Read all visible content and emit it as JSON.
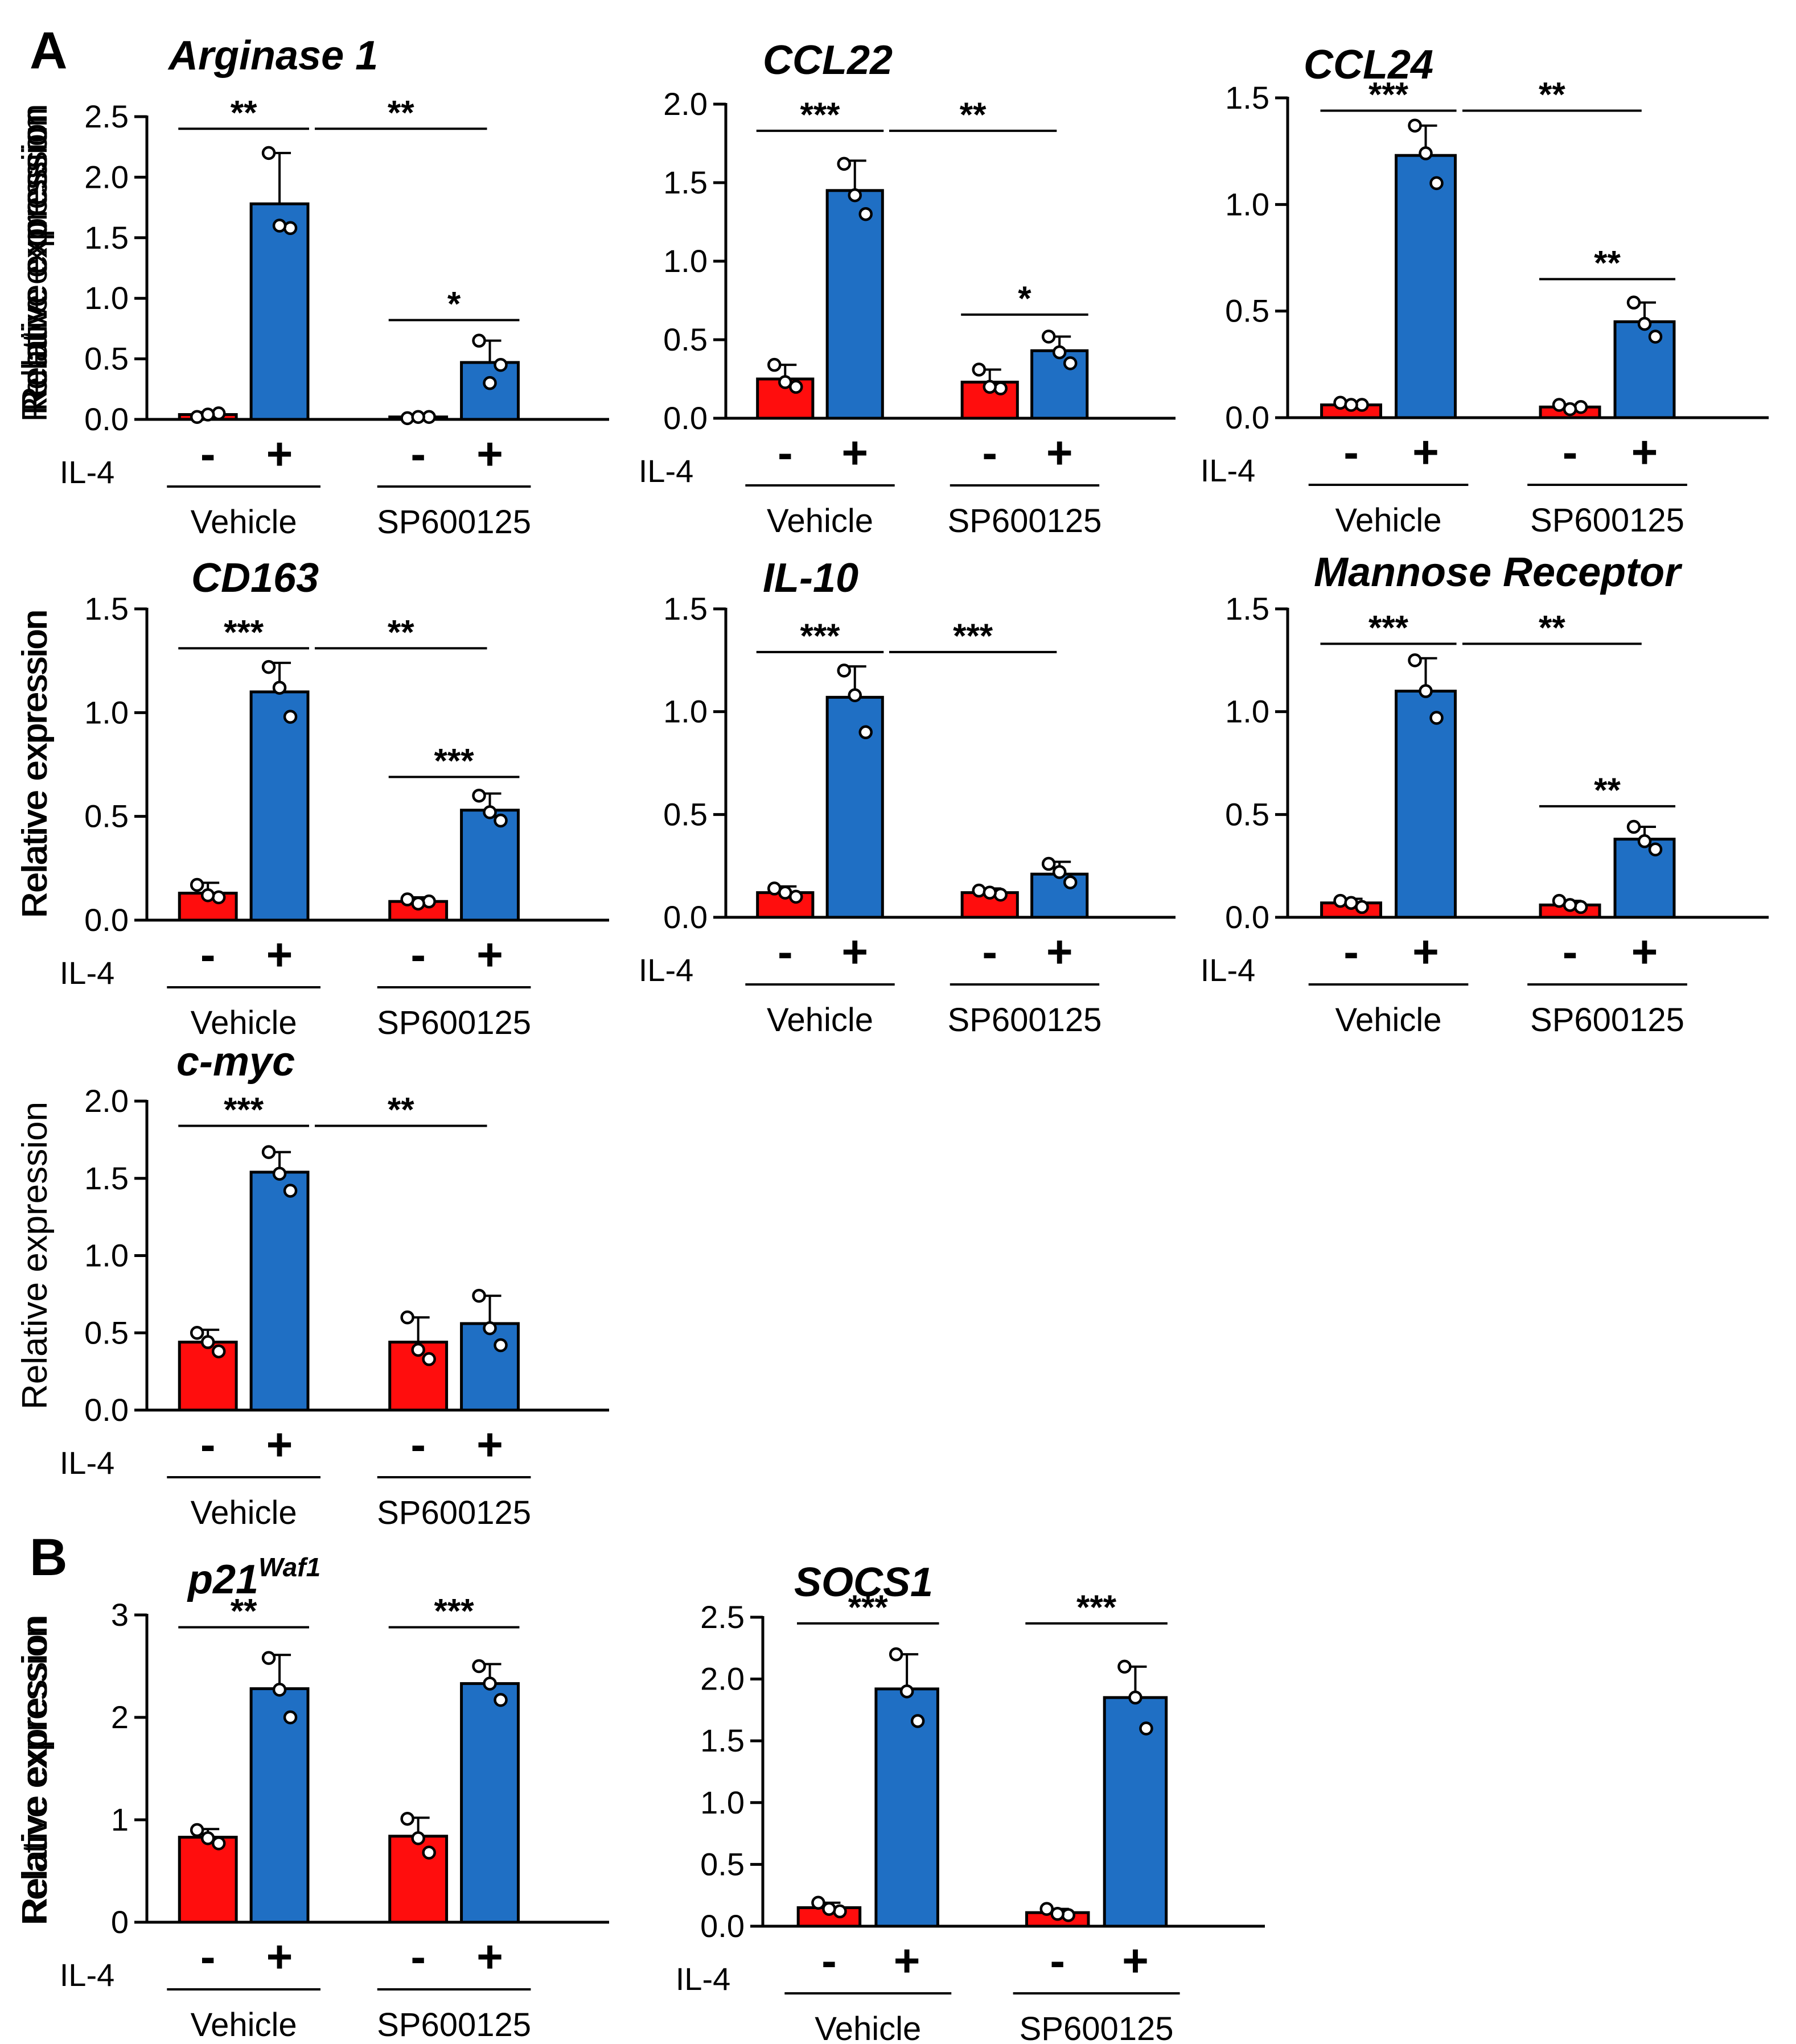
{
  "figure": {
    "ylabel": "Relative expression",
    "x_factor_label": "IL-4",
    "minus": "-",
    "plus": "+",
    "group_labels": [
      "Vehicle",
      "SP600125"
    ],
    "colors": {
      "no_il4": "#ff0d0d",
      "il4": "#1f6fc4"
    },
    "panel_letters": [
      "A",
      "B"
    ]
  },
  "chart_data": [
    {
      "type": "bar",
      "panel": "A",
      "title": "Arginase 1",
      "ylim": [
        0,
        2.5
      ],
      "yticks": [
        0.0,
        0.5,
        1.0,
        1.5,
        2.0,
        2.5
      ],
      "categories": [
        "Vehicle -",
        "Vehicle +",
        "SP600125 -",
        "SP600125 +"
      ],
      "values": [
        0.04,
        1.78,
        0.02,
        0.47
      ],
      "error": [
        0.02,
        0.42,
        0.01,
        0.18
      ],
      "points": [
        [
          0.02,
          0.05,
          0.04
        ],
        [
          2.2,
          1.58,
          1.6
        ],
        [
          0.01,
          0.02,
          0.02
        ],
        [
          0.65,
          0.45,
          0.3
        ]
      ],
      "significance": [
        {
          "from": 0,
          "to": 1,
          "label": "**",
          "y": 2.4
        },
        {
          "from": 1,
          "to": 3,
          "label": "**",
          "y": 2.4
        },
        {
          "from": 2,
          "to": 3,
          "label": "*",
          "y": 0.82
        }
      ]
    },
    {
      "type": "bar",
      "panel": "A",
      "title": "CCL22",
      "ylim": [
        0,
        2.0
      ],
      "yticks": [
        0.0,
        0.5,
        1.0,
        1.5,
        2.0
      ],
      "categories": [
        "Vehicle -",
        "Vehicle +",
        "SP600125 -",
        "SP600125 +"
      ],
      "values": [
        0.25,
        1.45,
        0.23,
        0.43
      ],
      "error": [
        0.09,
        0.19,
        0.08,
        0.09
      ],
      "points": [
        [
          0.34,
          0.2,
          0.23
        ],
        [
          1.62,
          1.3,
          1.42
        ],
        [
          0.31,
          0.19,
          0.2
        ],
        [
          0.52,
          0.35,
          0.42
        ]
      ],
      "significance": [
        {
          "from": 0,
          "to": 1,
          "label": "***",
          "y": 1.83
        },
        {
          "from": 1,
          "to": 3,
          "label": "**",
          "y": 1.83
        },
        {
          "from": 2,
          "to": 3,
          "label": "*",
          "y": 0.66
        }
      ]
    },
    {
      "type": "bar",
      "panel": "A",
      "title": "CCL24",
      "ylim": [
        0,
        1.5
      ],
      "yticks": [
        0.0,
        0.5,
        1.0,
        1.5
      ],
      "categories": [
        "Vehicle -",
        "Vehicle +",
        "SP600125 -",
        "SP600125 +"
      ],
      "values": [
        0.06,
        1.23,
        0.05,
        0.45
      ],
      "error": [
        0.01,
        0.14,
        0.01,
        0.09
      ],
      "points": [
        [
          0.07,
          0.06,
          0.06
        ],
        [
          1.37,
          1.1,
          1.24
        ],
        [
          0.06,
          0.05,
          0.04
        ],
        [
          0.54,
          0.38,
          0.44
        ]
      ],
      "significance": [
        {
          "from": 0,
          "to": 1,
          "label": "***",
          "y": 1.44
        },
        {
          "from": 1,
          "to": 3,
          "label": "**",
          "y": 1.44
        },
        {
          "from": 2,
          "to": 3,
          "label": "**",
          "y": 0.65
        }
      ]
    },
    {
      "type": "bar",
      "panel": "A",
      "title": "CD163",
      "ylim": [
        0,
        1.5
      ],
      "yticks": [
        0.0,
        0.5,
        1.0,
        1.5
      ],
      "categories": [
        "Vehicle -",
        "Vehicle +",
        "SP600125 -",
        "SP600125 +"
      ],
      "values": [
        0.13,
        1.1,
        0.09,
        0.53
      ],
      "error": [
        0.05,
        0.14,
        0.02,
        0.08
      ],
      "points": [
        [
          0.17,
          0.11,
          0.12
        ],
        [
          1.22,
          0.98,
          1.12
        ],
        [
          0.1,
          0.09,
          0.08
        ],
        [
          0.6,
          0.48,
          0.52
        ]
      ],
      "significance": [
        {
          "from": 0,
          "to": 1,
          "label": "***",
          "y": 1.31
        },
        {
          "from": 1,
          "to": 3,
          "label": "**",
          "y": 1.31
        },
        {
          "from": 2,
          "to": 3,
          "label": "***",
          "y": 0.69
        }
      ]
    },
    {
      "type": "bar",
      "panel": "A",
      "title": "IL-10",
      "ylim": [
        0,
        1.5
      ],
      "yticks": [
        0.0,
        0.5,
        1.0,
        1.5
      ],
      "categories": [
        "Vehicle -",
        "Vehicle +",
        "SP600125 -",
        "SP600125 +"
      ],
      "values": [
        0.12,
        1.07,
        0.12,
        0.21
      ],
      "error": [
        0.03,
        0.15,
        0.02,
        0.06
      ],
      "points": [
        [
          0.14,
          0.1,
          0.12
        ],
        [
          1.2,
          0.9,
          1.08
        ],
        [
          0.13,
          0.11,
          0.12
        ],
        [
          0.26,
          0.17,
          0.22
        ]
      ],
      "significance": [
        {
          "from": 0,
          "to": 1,
          "label": "***",
          "y": 1.29
        },
        {
          "from": 1,
          "to": 3,
          "label": "***",
          "y": 1.29
        }
      ]
    },
    {
      "type": "bar",
      "panel": "A",
      "title": "Mannose Receptor",
      "ylim": [
        0,
        1.5
      ],
      "yticks": [
        0.0,
        0.5,
        1.0,
        1.5
      ],
      "categories": [
        "Vehicle -",
        "Vehicle +",
        "SP600125 -",
        "SP600125 +"
      ],
      "values": [
        0.07,
        1.1,
        0.06,
        0.38
      ],
      "error": [
        0.02,
        0.16,
        0.02,
        0.06
      ],
      "points": [
        [
          0.08,
          0.05,
          0.07
        ],
        [
          1.25,
          0.97,
          1.1
        ],
        [
          0.08,
          0.05,
          0.06
        ],
        [
          0.44,
          0.33,
          0.37
        ]
      ],
      "significance": [
        {
          "from": 0,
          "to": 1,
          "label": "***",
          "y": 1.33
        },
        {
          "from": 1,
          "to": 3,
          "label": "**",
          "y": 1.33
        },
        {
          "from": 2,
          "to": 3,
          "label": "**",
          "y": 0.54
        }
      ]
    },
    {
      "type": "bar",
      "panel": "A",
      "title": "c-myc",
      "ylim": [
        0,
        2.0
      ],
      "yticks": [
        0.0,
        0.5,
        1.0,
        1.5,
        2.0
      ],
      "categories": [
        "Vehicle -",
        "Vehicle +",
        "SP600125 -",
        "SP600125 +"
      ],
      "values": [
        0.44,
        1.54,
        0.44,
        0.56
      ],
      "error": [
        0.08,
        0.13,
        0.16,
        0.18
      ],
      "points": [
        [
          0.5,
          0.38,
          0.44
        ],
        [
          1.67,
          1.42,
          1.53
        ],
        [
          0.6,
          0.33,
          0.39
        ],
        [
          0.74,
          0.42,
          0.53
        ]
      ],
      "significance": [
        {
          "from": 0,
          "to": 1,
          "label": "***",
          "y": 1.84
        },
        {
          "from": 1,
          "to": 3,
          "label": "**",
          "y": 1.84
        }
      ]
    },
    {
      "type": "bar",
      "panel": "B",
      "title": "p21",
      "title_superscript": "Waf1",
      "ylim": [
        0,
        3
      ],
      "yticks": [
        0,
        1,
        2,
        3
      ],
      "categories": [
        "Vehicle -",
        "Vehicle +",
        "SP600125 -",
        "SP600125 +"
      ],
      "values": [
        0.83,
        2.28,
        0.84,
        2.33
      ],
      "error": [
        0.08,
        0.33,
        0.18,
        0.19
      ],
      "points": [
        [
          0.9,
          0.77,
          0.82
        ],
        [
          2.58,
          2.0,
          2.27
        ],
        [
          1.01,
          0.68,
          0.82
        ],
        [
          2.5,
          2.17,
          2.33
        ]
      ],
      "significance": [
        {
          "from": 0,
          "to": 1,
          "label": "**",
          "y": 2.88
        },
        {
          "from": 2,
          "to": 3,
          "label": "***",
          "y": 2.88
        }
      ]
    },
    {
      "type": "bar",
      "panel": "B",
      "title": "SOCS1",
      "ylim": [
        0,
        2.5
      ],
      "yticks": [
        0.0,
        0.5,
        1.0,
        1.5,
        2.0,
        2.5
      ],
      "categories": [
        "Vehicle -",
        "Vehicle +",
        "SP600125 -",
        "SP600125 +"
      ],
      "values": [
        0.15,
        1.92,
        0.11,
        1.85
      ],
      "error": [
        0.04,
        0.28,
        0.03,
        0.25
      ],
      "points": [
        [
          0.19,
          0.12,
          0.14
        ],
        [
          2.2,
          1.66,
          1.9
        ],
        [
          0.14,
          0.09,
          0.1
        ],
        [
          2.1,
          1.6,
          1.85
        ]
      ],
      "significance": [
        {
          "from": 0,
          "to": 1,
          "label": "***",
          "y": 2.45
        },
        {
          "from": 2,
          "to": 3,
          "label": "***",
          "y": 2.45
        }
      ]
    }
  ]
}
